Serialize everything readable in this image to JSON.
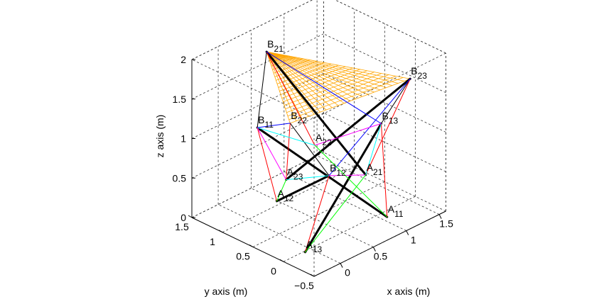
{
  "chart_data": {
    "type": "3d-line",
    "xlabel": "x axis (m)",
    "ylabel": "y axis (m)",
    "zlabel": "z axis (m)",
    "xlim": [
      -0.4,
      1.6
    ],
    "ylim": [
      -0.5,
      1.5
    ],
    "zlim": [
      0,
      2
    ],
    "xticks": [
      "0",
      "0.5",
      "1",
      "1.5"
    ],
    "xtick_values": [
      0,
      0.5,
      1,
      1.5
    ],
    "yticks": [
      "−0.5",
      "0",
      "0.5",
      "1",
      "1.5"
    ],
    "ytick_values": [
      -0.5,
      0,
      0.5,
      1,
      1.5
    ],
    "zticks": [
      "0",
      "0.5",
      "1",
      "1.5",
      "2"
    ],
    "ztick_values": [
      0,
      0.5,
      1,
      1.5,
      2
    ],
    "grid": true,
    "box": true,
    "nodes": [
      {
        "id": "A11",
        "base": "A",
        "sub": "11",
        "xyz": [
          1.07,
          -0.11,
          0
        ]
      },
      {
        "id": "A12",
        "base": "A",
        "sub": "12",
        "xyz": [
          0.49,
          1.07,
          0
        ]
      },
      {
        "id": "A13",
        "base": "A",
        "sub": "13",
        "xyz": [
          -0.09,
          -0.02,
          0
        ]
      },
      {
        "id": "B11",
        "base": "B",
        "sub": "11",
        "xyz": [
          0.26,
          1.14,
          1
        ]
      },
      {
        "id": "B12",
        "base": "B",
        "sub": "12",
        "xyz": [
          0.05,
          -0.26,
          1
        ]
      },
      {
        "id": "B13",
        "base": "B",
        "sub": "13",
        "xyz": [
          1.25,
          0.18,
          1
        ]
      },
      {
        "id": "A21",
        "base": "A",
        "sub": "21",
        "xyz": [
          0.95,
          0.11,
          0.5
        ]
      },
      {
        "id": "A22",
        "base": "A",
        "sub": "22",
        "xyz": [
          1.03,
          1.03,
          0.5
        ]
      },
      {
        "id": "A23",
        "base": "A",
        "sub": "23",
        "xyz": [
          0.28,
          0.69,
          0.5
        ]
      },
      {
        "id": "B21",
        "base": "B",
        "sub": "21",
        "xyz": [
          0.28,
          1.01,
          2
        ]
      },
      {
        "id": "B22",
        "base": "B",
        "sub": "22",
        "xyz": [
          -0.04,
          0.28,
          1.5
        ]
      },
      {
        "id": "B23",
        "base": "B",
        "sub": "23",
        "xyz": [
          1.18,
          -0.37,
          1.8
        ]
      }
    ],
    "surface": {
      "vertices": [
        "B21",
        "B22",
        "B23"
      ],
      "color": "#ffa500"
    },
    "edges": [
      {
        "from": "B11",
        "to": "A11",
        "color": "#000000",
        "kind": "strut"
      },
      {
        "from": "A12",
        "to": "B12",
        "color": "#000000",
        "kind": "strut"
      },
      {
        "from": "A13",
        "to": "B13",
        "color": "#000000",
        "kind": "strut"
      },
      {
        "from": "B21",
        "to": "A21",
        "color": "#000000",
        "kind": "strut"
      },
      {
        "from": "A23",
        "to": "B23",
        "color": "#000000",
        "kind": "strut"
      },
      {
        "from": "B21",
        "to": "B11",
        "color": "#000000",
        "kind": "cable"
      },
      {
        "from": "B22",
        "to": "B12",
        "color": "#000000",
        "kind": "cable"
      },
      {
        "from": "B23",
        "to": "B13",
        "color": "#000000",
        "kind": "cable"
      },
      {
        "from": "B11",
        "to": "A12",
        "color": "#ff0000",
        "kind": "cable"
      },
      {
        "from": "B12",
        "to": "A13",
        "color": "#ff0000",
        "kind": "cable"
      },
      {
        "from": "B13",
        "to": "A11",
        "color": "#ff0000",
        "kind": "cable"
      },
      {
        "from": "B21",
        "to": "A22",
        "color": "#ff0000",
        "kind": "cable"
      },
      {
        "from": "B22",
        "to": "A23",
        "color": "#ff0000",
        "kind": "cable"
      },
      {
        "from": "B23",
        "to": "A21",
        "color": "#ff0000",
        "kind": "cable"
      },
      {
        "from": "B11",
        "to": "B22",
        "color": "#0000ff",
        "kind": "cable"
      },
      {
        "from": "B21",
        "to": "B13",
        "color": "#0000ff",
        "kind": "cable"
      },
      {
        "from": "B12",
        "to": "B23",
        "color": "#0000ff",
        "kind": "cable"
      },
      {
        "from": "B11",
        "to": "A22",
        "color": "#00ffff",
        "kind": "cable"
      },
      {
        "from": "A23",
        "to": "B12",
        "color": "#00ffff",
        "kind": "cable"
      },
      {
        "from": "B13",
        "to": "A21",
        "color": "#00ffff",
        "kind": "cable"
      },
      {
        "from": "B11",
        "to": "A23",
        "color": "#ff00ff",
        "kind": "cable"
      },
      {
        "from": "A22",
        "to": "B13",
        "color": "#ff00ff",
        "kind": "cable"
      },
      {
        "from": "B12",
        "to": "A21",
        "color": "#ff00ff",
        "kind": "cable"
      },
      {
        "from": "A12",
        "to": "A23",
        "color": "#00ff00",
        "kind": "cable"
      },
      {
        "from": "A22",
        "to": "A11",
        "color": "#00ff00",
        "kind": "cable"
      },
      {
        "from": "A21",
        "to": "A13",
        "color": "#00ff00",
        "kind": "cable"
      }
    ]
  }
}
